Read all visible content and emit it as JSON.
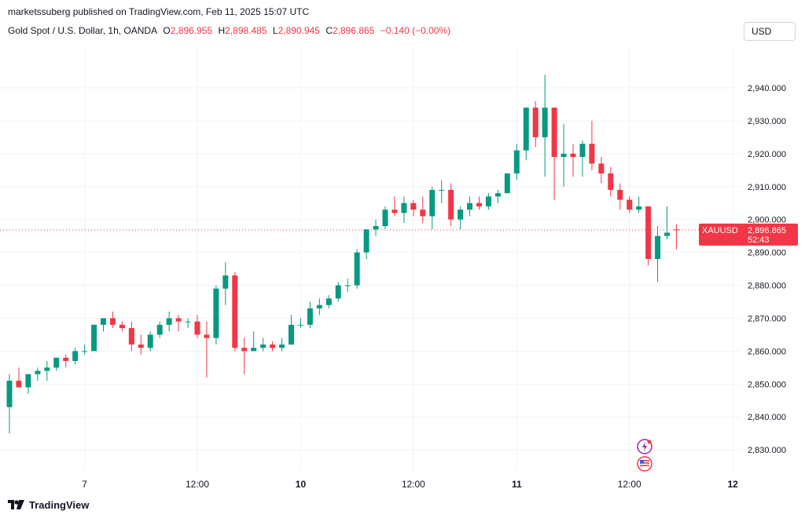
{
  "header": {
    "published": "marketssuberg published on TradingView.com, Feb 11, 2025 15:07 UTC",
    "symbol_desc": "Gold Spot / U.S. Dollar, 1h, OANDA",
    "o_label": "O",
    "o_value": "2,896.955",
    "h_label": "H",
    "h_value": "2,898.485",
    "l_label": "L",
    "l_value": "2,890.945",
    "c_label": "C",
    "c_value": "2,896.865",
    "change": "−0.140 (−0.00%)",
    "currency": "USD"
  },
  "price_tag": {
    "symbol": "XAUUSD",
    "price": "2,896.865",
    "countdown": "52:43"
  },
  "brand": {
    "name": "TradingView"
  },
  "colors": {
    "up": "#089981",
    "down": "#f23645",
    "grid": "#f0f3fa",
    "axis_text": "#131722"
  },
  "chart_data": {
    "type": "candlestick",
    "symbol": "XAUUSD",
    "interval": "1h",
    "y_ticks": [
      "2,830.000",
      "2,840.000",
      "2,850.000",
      "2,860.000",
      "2,870.000",
      "2,880.000",
      "2,890.000",
      "2,900.000",
      "2,910.000",
      "2,920.000",
      "2,930.000",
      "2,940.000"
    ],
    "y_tick_values": [
      2830,
      2840,
      2850,
      2860,
      2870,
      2880,
      2890,
      2900,
      2910,
      2920,
      2930,
      2940
    ],
    "ylim": [
      2823.6,
      2952.4
    ],
    "x_ticks": [
      {
        "label": "7",
        "bold": false,
        "index": 8
      },
      {
        "label": "12:00",
        "bold": false,
        "index": 20
      },
      {
        "label": "10",
        "bold": true,
        "index": 31
      },
      {
        "label": "12:00",
        "bold": false,
        "index": 43
      },
      {
        "label": "11",
        "bold": true,
        "index": 54
      },
      {
        "label": "12:00",
        "bold": false,
        "index": 66
      },
      {
        "label": "12",
        "bold": true,
        "index": 77
      }
    ],
    "candles": [
      [
        2843,
        2853,
        2835,
        2851
      ],
      [
        2851,
        2855,
        2849,
        2849
      ],
      [
        2849,
        2853,
        2847,
        2853
      ],
      [
        2853,
        2855,
        2851,
        2854
      ],
      [
        2854,
        2857,
        2851,
        2855
      ],
      [
        2855,
        2858,
        2854,
        2858
      ],
      [
        2858,
        2859,
        2855,
        2857
      ],
      [
        2857,
        2861,
        2856,
        2860
      ],
      [
        2860,
        2862,
        2859,
        2860
      ],
      [
        2860,
        2868,
        2860,
        2868
      ],
      [
        2868,
        2870,
        2866,
        2870
      ],
      [
        2870,
        2872,
        2867,
        2868
      ],
      [
        2868,
        2869,
        2866,
        2867
      ],
      [
        2867,
        2869,
        2860,
        2862
      ],
      [
        2862,
        2865,
        2859,
        2861
      ],
      [
        2861,
        2866,
        2860,
        2865
      ],
      [
        2865,
        2869,
        2864,
        2868
      ],
      [
        2868,
        2872,
        2866,
        2870
      ],
      [
        2870,
        2871,
        2866,
        2869
      ],
      [
        2869,
        2870,
        2867,
        2869
      ],
      [
        2869,
        2871,
        2864,
        2865
      ],
      [
        2865,
        2869,
        2852,
        2864
      ],
      [
        2864,
        2880,
        2862,
        2879
      ],
      [
        2879,
        2887,
        2874,
        2883
      ],
      [
        2883,
        2884,
        2860,
        2861
      ],
      [
        2861,
        2864,
        2853,
        2860
      ],
      [
        2860,
        2866,
        2860,
        2861
      ],
      [
        2861,
        2864,
        2860,
        2862
      ],
      [
        2862,
        2863,
        2860,
        2861
      ],
      [
        2861,
        2864,
        2860,
        2862
      ],
      [
        2862,
        2871,
        2862,
        2868
      ],
      [
        2868,
        2870,
        2867,
        2868
      ],
      [
        2868,
        2875,
        2867,
        2873
      ],
      [
        2873,
        2876,
        2871,
        2874
      ],
      [
        2874,
        2877,
        2873,
        2876
      ],
      [
        2876,
        2881,
        2875,
        2880
      ],
      [
        2880,
        2882,
        2878,
        2880
      ],
      [
        2880,
        2891,
        2879,
        2890
      ],
      [
        2890,
        2897,
        2888,
        2897
      ],
      [
        2897,
        2900,
        2895,
        2898
      ],
      [
        2898,
        2904,
        2897,
        2903
      ],
      [
        2903,
        2907,
        2901,
        2902
      ],
      [
        2902,
        2907,
        2899,
        2905
      ],
      [
        2905,
        2906,
        2901,
        2903
      ],
      [
        2903,
        2907,
        2899,
        2901
      ],
      [
        2901,
        2910,
        2897,
        2909
      ],
      [
        2909,
        2912,
        2905,
        2909
      ],
      [
        2909,
        2911,
        2898,
        2900
      ],
      [
        2900,
        2904,
        2897,
        2903
      ],
      [
        2903,
        2907,
        2901,
        2905
      ],
      [
        2905,
        2907,
        2903,
        2904
      ],
      [
        2904,
        2908,
        2903,
        2907
      ],
      [
        2907,
        2909,
        2905,
        2908
      ],
      [
        2908,
        2914,
        2908,
        2914
      ],
      [
        2914,
        2923,
        2912,
        2921
      ],
      [
        2921,
        2934,
        2918,
        2934
      ],
      [
        2934,
        2936,
        2922,
        2925
      ],
      [
        2925,
        2944,
        2913,
        2934
      ],
      [
        2934,
        2934,
        2906,
        2919
      ],
      [
        2919,
        2929,
        2910,
        2920
      ],
      [
        2920,
        2923,
        2913,
        2919
      ],
      [
        2919,
        2924,
        2913,
        2923
      ],
      [
        2923,
        2930,
        2915,
        2917
      ],
      [
        2917,
        2919,
        2911,
        2914
      ],
      [
        2914,
        2916,
        2907,
        2909
      ],
      [
        2909,
        2911,
        2903,
        2906
      ],
      [
        2906,
        2907,
        2902,
        2903
      ],
      [
        2903,
        2907,
        2902,
        2904
      ],
      [
        2904,
        2904,
        2886,
        2888
      ],
      [
        2888,
        2898,
        2881,
        2895
      ],
      [
        2895,
        2904,
        2894,
        2896
      ],
      [
        2896.955,
        2898.485,
        2890.945,
        2896.865
      ]
    ],
    "last_price": 2896.865
  }
}
